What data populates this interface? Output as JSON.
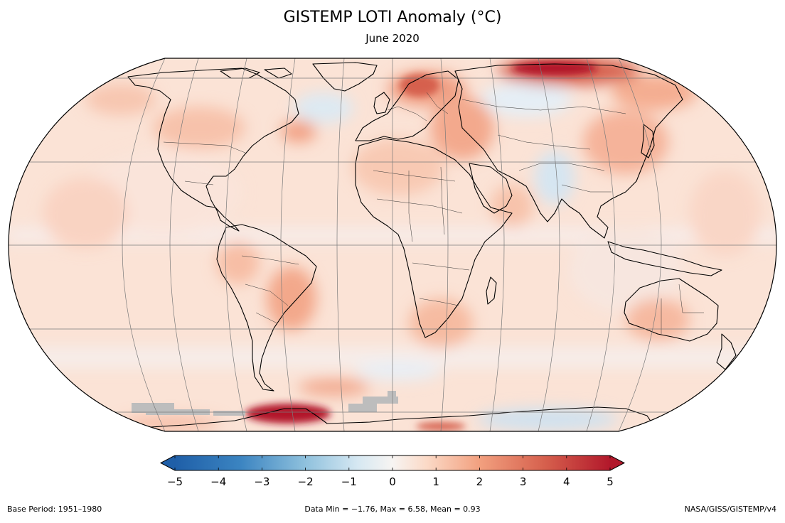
{
  "title": "GISTEMP LOTI Anomaly (°C)",
  "subtitle": "June 2020",
  "footer": {
    "base_period": "Base Period: 1951–1980",
    "data_stats": "Data Min = −1.76, Max = 6.58, Mean = 0.93",
    "source": "NASA/GISS/GISTEMP/v4"
  },
  "colorbar": {
    "min": -5,
    "max": 5,
    "ticks": [
      "−5",
      "−4",
      "−3",
      "−2",
      "−1",
      "0",
      "1",
      "2",
      "3",
      "4",
      "5"
    ],
    "extend": "both",
    "colors": [
      "#2166ac",
      "#4393c3",
      "#92c5de",
      "#d1e5f0",
      "#f7f7f7",
      "#fddbc7",
      "#f4a582",
      "#d6604d",
      "#b2182b"
    ]
  },
  "map": {
    "projection": "Robinson",
    "ocean_base_color": "#fbe3d6",
    "missing_data_color": "#bdbdbd"
  }
}
